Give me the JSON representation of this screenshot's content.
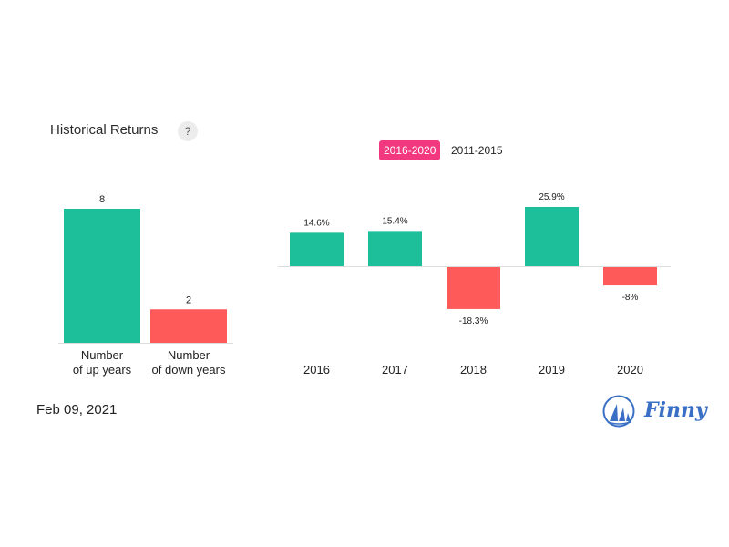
{
  "header": {
    "title": "Historical Returns",
    "help_label": "?"
  },
  "tabs": [
    {
      "label": "2016-2020",
      "active": true
    },
    {
      "label": "2011-2015",
      "active": false
    }
  ],
  "colors": {
    "up": "#1dbf9b",
    "down": "#ff5a5a",
    "accent": "#f2387f",
    "brand": "#3a6fc6"
  },
  "chart_data": [
    {
      "type": "bar",
      "title": "",
      "categories": [
        "Number\nof up years",
        "Number\nof down years"
      ],
      "values": [
        8,
        2
      ],
      "data_labels": [
        "8",
        "2"
      ],
      "ylim": [
        0,
        8
      ]
    },
    {
      "type": "bar",
      "title": "",
      "categories": [
        "2016",
        "2017",
        "2018",
        "2019",
        "2020"
      ],
      "values": [
        14.6,
        15.4,
        -18.3,
        25.9,
        -8
      ],
      "data_labels": [
        "14.6%",
        "15.4%",
        "-18.3%",
        "25.9%",
        "-8%"
      ],
      "ylim": [
        -18.3,
        25.9
      ]
    }
  ],
  "footer": {
    "date": "Feb 09, 2021",
    "brand": "Finny"
  }
}
